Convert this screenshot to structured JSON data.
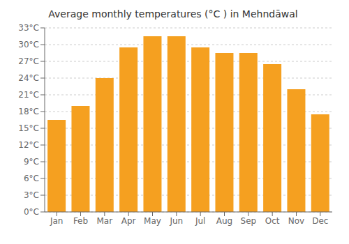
{
  "chart_data": {
    "type": "bar",
    "title": "Average monthly temperatures (°C ) in Mehndāwal",
    "categories": [
      "Jan",
      "Feb",
      "Mar",
      "Apr",
      "May",
      "Jun",
      "Jul",
      "Aug",
      "Sep",
      "Oct",
      "Nov",
      "Dec"
    ],
    "values": [
      16.5,
      19.0,
      24.0,
      29.5,
      31.5,
      31.5,
      29.5,
      28.5,
      28.5,
      26.5,
      22.0,
      17.5
    ],
    "color": "#F5A020",
    "ylim": [
      0,
      33
    ],
    "yticks": [
      {
        "value": 0,
        "label": "0°C"
      },
      {
        "value": 3,
        "label": "3°C"
      },
      {
        "value": 6,
        "label": "6°C"
      },
      {
        "value": 9,
        "label": "9°C"
      },
      {
        "value": 12,
        "label": "12°C"
      },
      {
        "value": 15,
        "label": "15°C"
      },
      {
        "value": 18,
        "label": "18°C"
      },
      {
        "value": 21,
        "label": "21°C"
      },
      {
        "value": 24,
        "label": "24°C"
      },
      {
        "value": 27,
        "label": "27°C"
      },
      {
        "value": 30,
        "label": "30°C"
      },
      {
        "value": 33,
        "label": "33°C"
      }
    ],
    "grid": true
  }
}
